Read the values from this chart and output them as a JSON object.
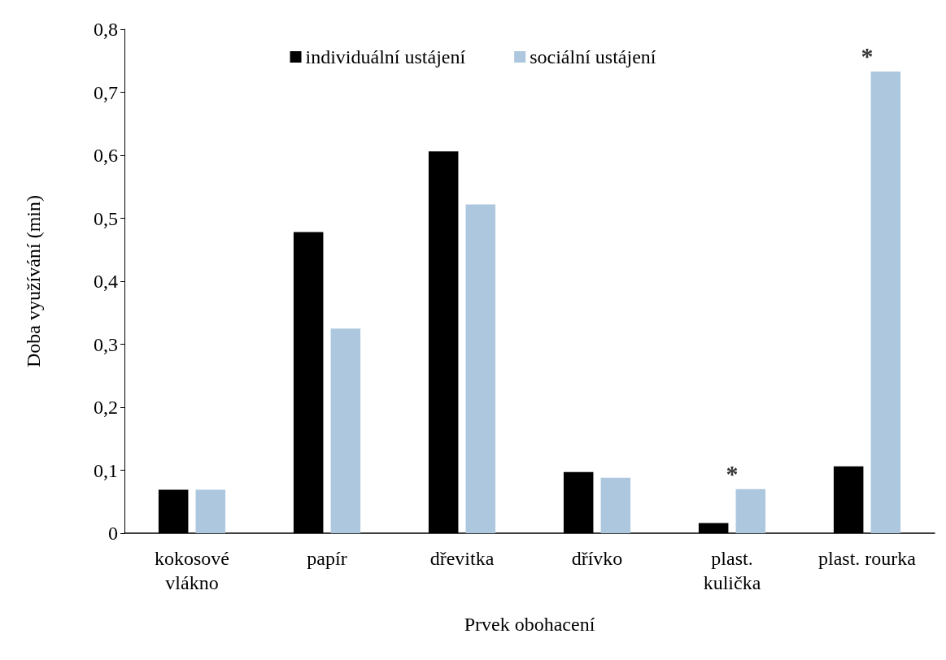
{
  "chart_data": {
    "type": "bar",
    "xlabel": "Prvek obohacení",
    "ylabel": "Doba využívání (min)",
    "categories": [
      "kokosové\nvlákno",
      "papír",
      "dřevitka",
      "dřívko",
      "plast.\nkulička",
      "plast. rourka"
    ],
    "series": [
      {
        "name": "individuální ustájení",
        "color": "#000000",
        "values": [
          0.069,
          0.478,
          0.606,
          0.097,
          0.016,
          0.106
        ]
      },
      {
        "name": "sociální ustájení",
        "color": "#adc8de",
        "values": [
          0.069,
          0.325,
          0.522,
          0.088,
          0.07,
          0.733
        ]
      }
    ],
    "annotations": [
      {
        "text": "*",
        "x": "plast.\nkulička",
        "y": 0.07
      },
      {
        "text": "*",
        "x": "plast. rourka",
        "y": 0.733
      }
    ],
    "ylim": [
      0,
      0.8
    ],
    "yticks": [
      0,
      {
        "value": 0.1,
        "label": "0,1"
      },
      {
        "value": 0.2,
        "label": "0,2"
      },
      {
        "value": 0.3,
        "label": "0,3"
      },
      {
        "value": 0.4,
        "label": "0,4"
      },
      {
        "value": 0.5,
        "label": "0,5"
      },
      {
        "value": 0.6,
        "label": "0,6"
      },
      {
        "value": 0.7,
        "label": "0,7"
      },
      {
        "value": 0.8,
        "label": "0,8"
      }
    ],
    "legend": "top",
    "grid": false
  }
}
